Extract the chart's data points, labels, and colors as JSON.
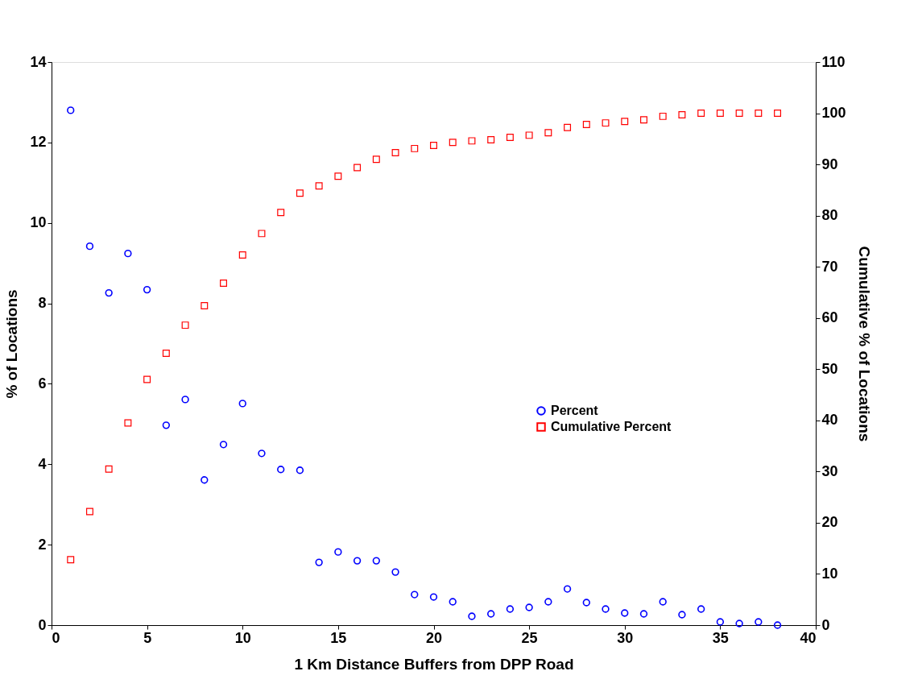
{
  "chart_data": {
    "type": "scatter",
    "xlabel": "1 Km Distance Buffers from DPP Road",
    "ylabel": "% of Locations",
    "y2label": "Cumulative % of Locations",
    "x": [
      1,
      2,
      3,
      4,
      5,
      6,
      7,
      8,
      9,
      10,
      11,
      12,
      13,
      14,
      15,
      16,
      17,
      18,
      19,
      20,
      21,
      22,
      23,
      24,
      25,
      26,
      27,
      28,
      29,
      30,
      31,
      32,
      33,
      34,
      35,
      36,
      37,
      38
    ],
    "series": [
      {
        "name": "Percent",
        "color": "#0000ff",
        "marker": "circle",
        "values": [
          12.8,
          9.42,
          8.26,
          9.24,
          8.34,
          4.97,
          5.61,
          3.61,
          4.49,
          5.51,
          4.27,
          3.87,
          3.85,
          1.56,
          1.82,
          1.6,
          1.6,
          1.32,
          0.76,
          0.7,
          0.58,
          0.22,
          0.28,
          0.4,
          0.44,
          0.58,
          0.9,
          0.56,
          0.4,
          0.3,
          0.28,
          0.58,
          0.26,
          0.4,
          0.08,
          0.04,
          0.08,
          0.0
        ]
      },
      {
        "name": "Cumulative Percent",
        "color": "#ff0000",
        "marker": "square",
        "axis": "y2",
        "values": [
          12.8,
          22.2,
          30.5,
          39.5,
          48.0,
          53.1,
          58.6,
          62.4,
          66.8,
          72.3,
          76.5,
          80.6,
          84.4,
          85.8,
          87.7,
          89.4,
          91.0,
          92.3,
          93.1,
          93.7,
          94.3,
          94.6,
          94.8,
          95.3,
          95.7,
          96.2,
          97.2,
          97.8,
          98.1,
          98.4,
          98.7,
          99.4,
          99.7,
          100,
          100,
          100,
          100,
          100
        ]
      }
    ],
    "xlim": [
      0,
      40
    ],
    "xticks": [
      0,
      5,
      10,
      15,
      20,
      25,
      30,
      35,
      40
    ],
    "ylim": [
      0,
      14
    ],
    "yticks": [
      0,
      2,
      4,
      6,
      8,
      10,
      12,
      14
    ],
    "y2lim": [
      0,
      110
    ],
    "y2ticks": [
      0,
      10,
      20,
      30,
      40,
      50,
      60,
      70,
      80,
      90,
      100,
      110
    ],
    "grid": false,
    "legend": "right"
  }
}
